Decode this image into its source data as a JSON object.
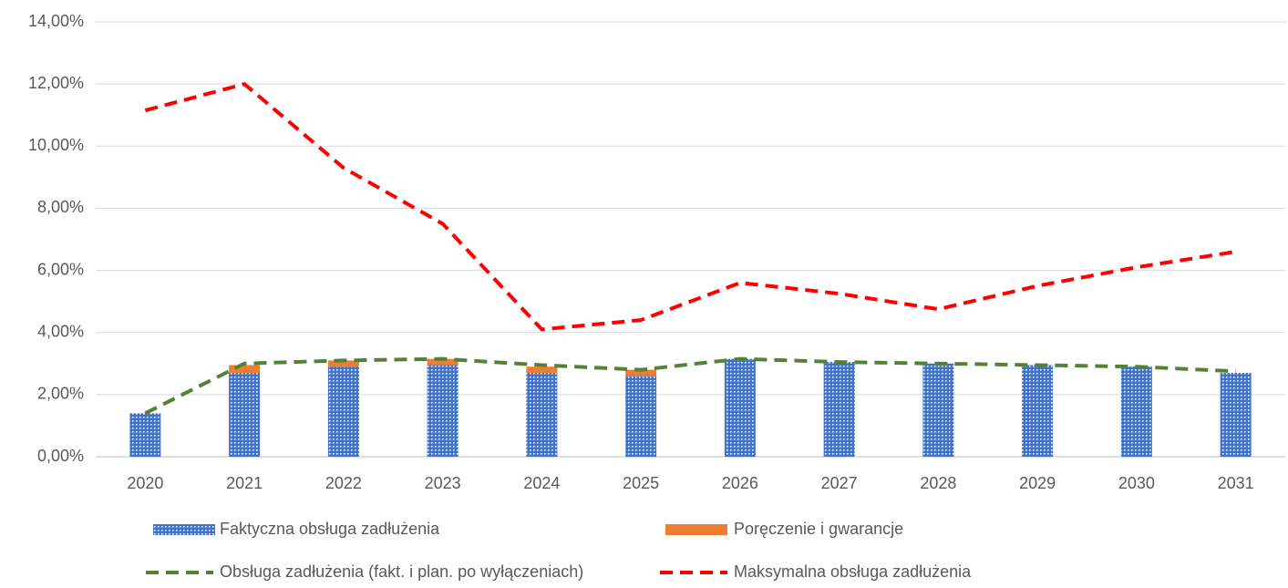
{
  "chart_data": {
    "type": "bar",
    "stacked": true,
    "categories": [
      "2020",
      "2021",
      "2022",
      "2023",
      "2024",
      "2025",
      "2026",
      "2027",
      "2028",
      "2029",
      "2030",
      "2031"
    ],
    "series": [
      {
        "name": "Faktyczna obsługa zadłużenia",
        "type": "bar",
        "pattern": "dots",
        "color": "#4472c4",
        "values": [
          1.4,
          2.7,
          2.9,
          2.95,
          2.7,
          2.6,
          3.15,
          3.05,
          3.0,
          2.95,
          2.9,
          2.7
        ]
      },
      {
        "name": "Poręczenie i gwarancje",
        "type": "bar",
        "color": "#ed7d31",
        "values": [
          0,
          0.25,
          0.2,
          0.2,
          0.2,
          0.2,
          0,
          0,
          0,
          0,
          0,
          0
        ]
      },
      {
        "name": "Obsługa zadłużenia (fakt. i plan. po wyłączeniach)",
        "type": "line",
        "dashed": true,
        "color": "#548235",
        "values": [
          1.4,
          3.0,
          3.1,
          3.15,
          2.95,
          2.8,
          3.15,
          3.05,
          3.0,
          2.95,
          2.9,
          2.75
        ]
      },
      {
        "name": "Maksymalna obsługa zadłużenia",
        "type": "line",
        "dashed": true,
        "color": "#ff0000",
        "values": [
          11.15,
          12.0,
          9.3,
          7.5,
          4.1,
          4.4,
          5.6,
          5.25,
          4.75,
          5.5,
          6.1,
          6.6
        ]
      }
    ],
    "ylim": [
      0,
      14
    ],
    "yticks": [
      {
        "value": 0,
        "label": "0,00%"
      },
      {
        "value": 2,
        "label": "2,00%"
      },
      {
        "value": 4,
        "label": "4,00%"
      },
      {
        "value": 6,
        "label": "6,00%"
      },
      {
        "value": 8,
        "label": "8,00%"
      },
      {
        "value": 10,
        "label": "10,00%"
      },
      {
        "value": 12,
        "label": "12,00%"
      },
      {
        "value": 14,
        "label": "14,00%"
      }
    ],
    "grid": true,
    "legend": "bottom"
  }
}
